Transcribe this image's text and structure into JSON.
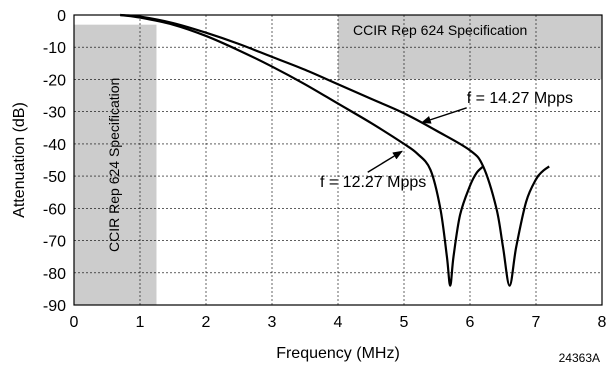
{
  "chart_data": {
    "type": "line",
    "xlabel": "Frequency (MHz)",
    "ylabel": "Attenuation (dB)",
    "xlim": [
      0,
      8
    ],
    "ylim": [
      -90,
      0
    ],
    "xticks": [
      "0",
      "1",
      "2",
      "3",
      "4",
      "5",
      "6",
      "7",
      "8"
    ],
    "yticks": [
      "0",
      "-10",
      "-20",
      "-30",
      "-40",
      "-50",
      "-60",
      "-70",
      "-80",
      "-90"
    ],
    "grid": true,
    "series": [
      {
        "name": "f = 12.27 Mpps",
        "x": [
          0.7,
          1.0,
          1.5,
          2.0,
          2.5,
          3.0,
          3.5,
          4.0,
          4.5,
          5.0,
          5.2,
          5.4,
          5.55,
          5.65,
          5.7,
          5.75,
          5.85,
          6.0,
          6.1,
          6.2
        ],
        "y": [
          0,
          -0.8,
          -3,
          -6.5,
          -11,
          -16,
          -21.5,
          -27.5,
          -33.5,
          -40,
          -43,
          -48,
          -60,
          -75,
          -84,
          -75,
          -62,
          -53,
          -49,
          -47
        ]
      },
      {
        "name": "f = 14.27 Mpps",
        "x": [
          0.7,
          1.0,
          1.5,
          2.0,
          2.5,
          3.0,
          3.5,
          4.0,
          4.5,
          5.0,
          5.5,
          6.0,
          6.2,
          6.4,
          6.5,
          6.6,
          6.7,
          6.85,
          7.0,
          7.1,
          7.2
        ],
        "y": [
          0,
          -0.5,
          -2.5,
          -5.5,
          -9,
          -13,
          -17,
          -21.5,
          -26,
          -30.5,
          -36,
          -42,
          -47,
          -60,
          -72,
          -84,
          -72,
          -58,
          -51,
          -48.5,
          -47
        ]
      }
    ],
    "annotations": [
      {
        "text": "f = 12.27 Mpps",
        "x": 3.55,
        "y": -51.5
      },
      {
        "text": "f = 14.27 Mpps",
        "x": 5.95,
        "y": -25.5
      }
    ],
    "spec_regions": [
      {
        "label": "CCIR Rep 624 Specification",
        "x": [
          0,
          1.25
        ],
        "y": [
          -90,
          -3
        ],
        "label_orientation": "vertical"
      },
      {
        "label": "CCIR Rep 624 Specification",
        "x": [
          4.0,
          8.0
        ],
        "y": [
          -20,
          0
        ],
        "label_orientation": "horizontal"
      }
    ],
    "figure_id": "24363A",
    "colors": {
      "curve": "#000000",
      "spec_region": "#cccccc",
      "grid": "#000000"
    }
  }
}
